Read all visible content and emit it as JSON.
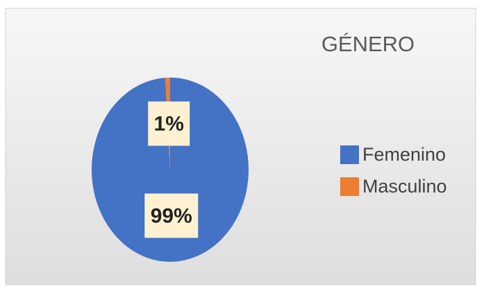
{
  "chart_data": {
    "type": "pie",
    "title": "GÉNERO",
    "categories": [
      "Femenino",
      "Masculino"
    ],
    "values": [
      99,
      1
    ],
    "value_labels": [
      "99%",
      "1%"
    ],
    "colors": [
      "#4472c4",
      "#ed7d31"
    ],
    "legend": "right"
  }
}
